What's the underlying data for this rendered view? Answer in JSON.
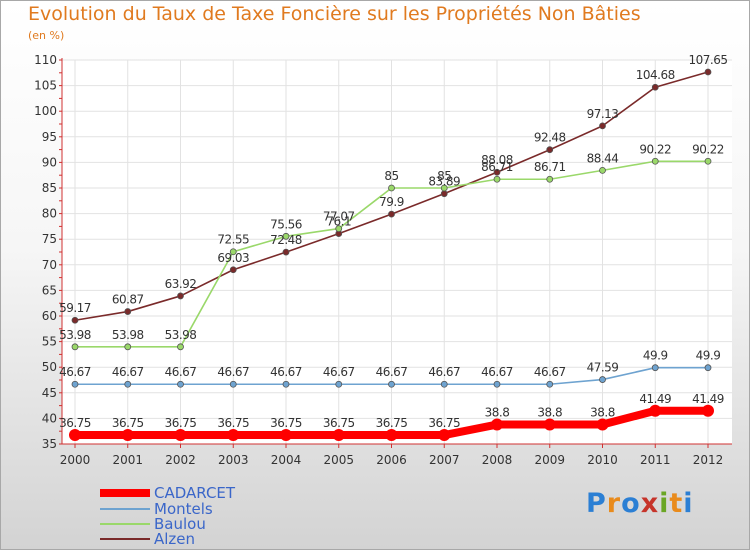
{
  "title": "Evolution du Taux de Taxe Foncière sur les Propriétés Non Bâties",
  "unit_label": "(en %)",
  "logo": {
    "text": "Proxiti",
    "letters": [
      "P",
      "r",
      "o",
      "x",
      "i",
      "t",
      "i"
    ],
    "colors": [
      "#2b7fd4",
      "#e98b1c",
      "#2b7fd4",
      "#c6342a",
      "#6aa624",
      "#e98b1c",
      "#2b7fd4"
    ]
  },
  "chart_data": {
    "type": "line",
    "title": "Evolution du Taux de Taxe Foncière sur les Propriétés Non Bâties",
    "ylabel": "(en %)",
    "xlabel": "",
    "ylim": [
      35,
      110
    ],
    "y_ticks": [
      "35",
      "40",
      "45",
      "50",
      "55",
      "60",
      "65",
      "70",
      "75",
      "80",
      "85",
      "90",
      "95",
      "100",
      "105",
      "110"
    ],
    "categories": [
      "2000",
      "2001",
      "2002",
      "2003",
      "2004",
      "2005",
      "2006",
      "2007",
      "2008",
      "2009",
      "2010",
      "2011",
      "2012"
    ],
    "grid": true,
    "legend_position": "bottom-left",
    "series": [
      {
        "name": "CADARCET",
        "color": "#ff0000",
        "values": [
          36.75,
          36.75,
          36.75,
          36.75,
          36.75,
          36.75,
          36.75,
          36.75,
          38.8,
          38.8,
          38.8,
          41.49,
          41.49
        ],
        "labels": [
          "36.75",
          "36.75",
          "36.75",
          "36.75",
          "36.75",
          "36.75",
          "36.75",
          "36.75",
          "38.8",
          "38.8",
          "38.8",
          "41.49",
          "41.49"
        ]
      },
      {
        "name": "Montels",
        "color": "#6ea3d0",
        "values": [
          46.67,
          46.67,
          46.67,
          46.67,
          46.67,
          46.67,
          46.67,
          46.67,
          46.67,
          46.67,
          47.59,
          49.9,
          49.9
        ],
        "labels": [
          "46.67",
          "46.67",
          "46.67",
          "46.67",
          "46.67",
          "46.67",
          "46.67",
          "46.67",
          "46.67",
          "46.67",
          "47.59",
          "49.9",
          "49.9"
        ]
      },
      {
        "name": "Baulou",
        "color": "#9ad86a",
        "values": [
          53.98,
          53.98,
          53.98,
          72.55,
          75.56,
          77.07,
          85,
          85,
          86.71,
          86.71,
          88.44,
          90.22,
          90.22
        ],
        "labels": [
          "53.98",
          "53.98",
          "53.98",
          "72.55",
          "75.56",
          "77.07",
          "85",
          "85",
          "86.71",
          "86.71",
          "88.44",
          "90.22",
          "90.22"
        ]
      },
      {
        "name": "Alzen",
        "color": "#7a2a2a",
        "values": [
          59.17,
          60.87,
          63.92,
          69.03,
          72.48,
          76.1,
          79.9,
          83.89,
          88.08,
          92.48,
          97.13,
          104.68,
          107.65
        ],
        "labels": [
          "59.17",
          "60.87",
          "63.92",
          "69.03",
          "72.48",
          "76.1",
          "79.9",
          "83.89",
          "88.08",
          "92.48",
          "97.13",
          "104.68",
          "107.65"
        ]
      }
    ]
  }
}
